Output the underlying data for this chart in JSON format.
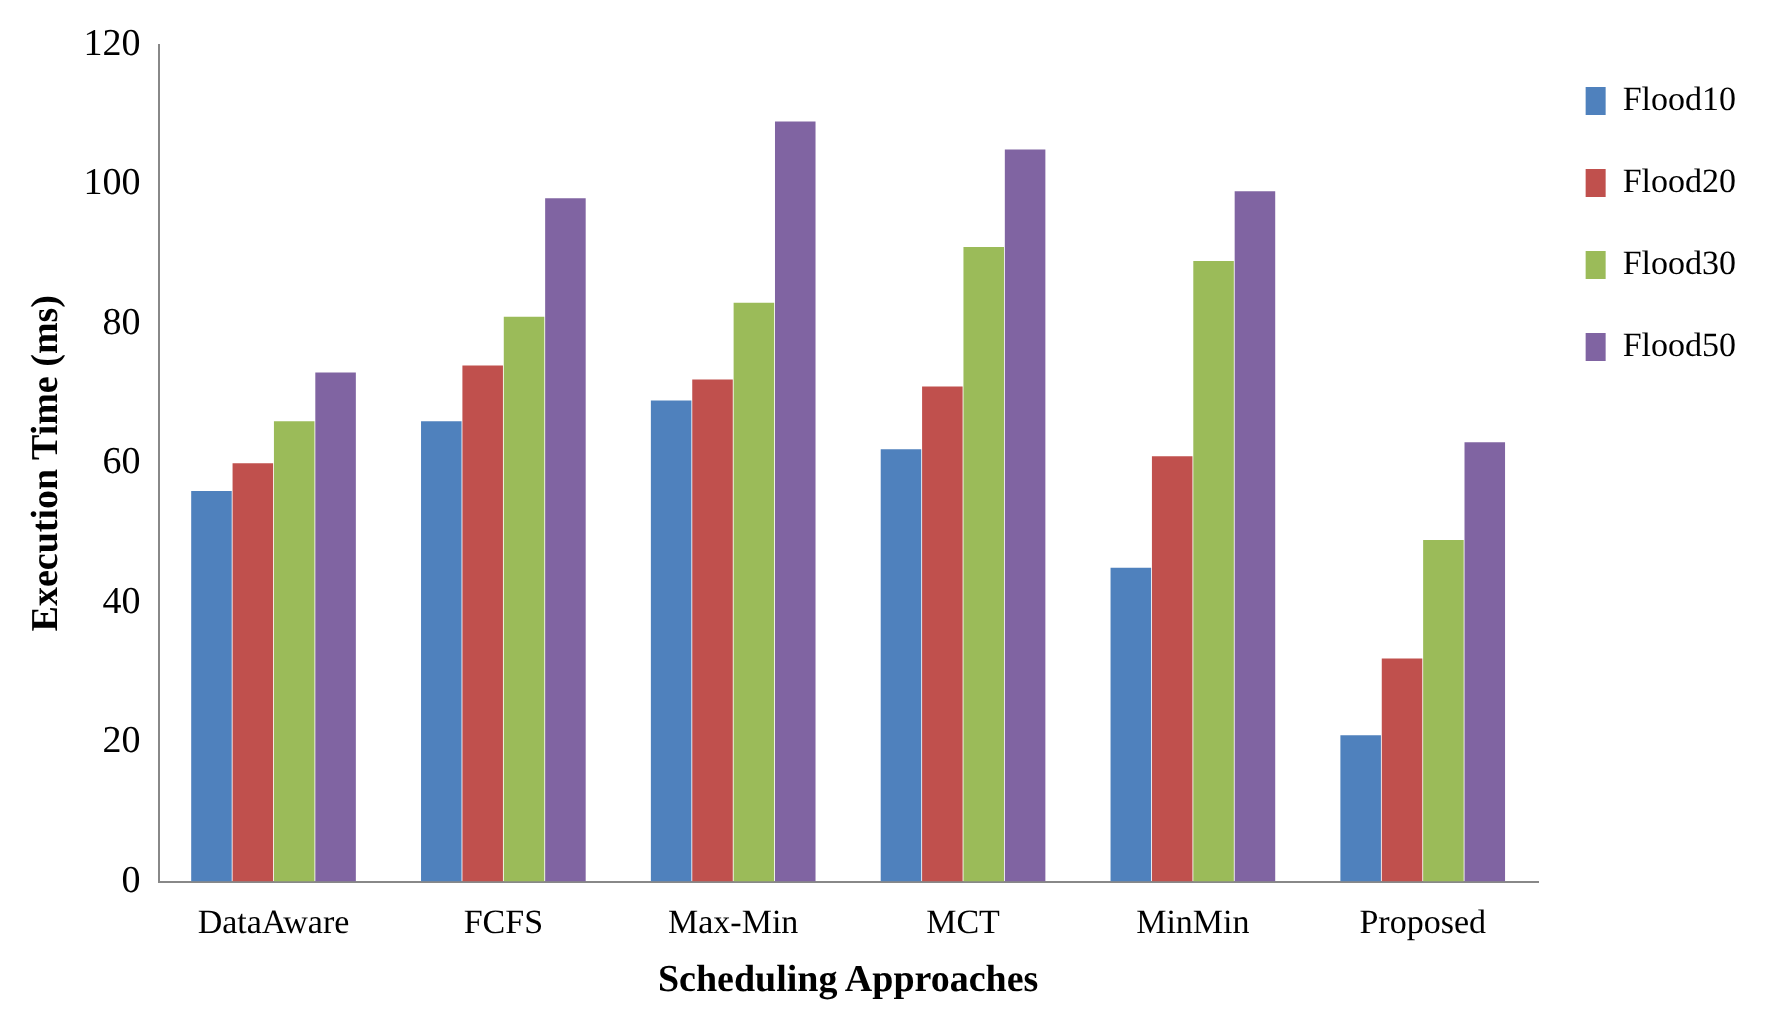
{
  "chart_data": {
    "type": "bar",
    "xlabel": "Scheduling Approaches",
    "ylabel": "Execution Time (ms)",
    "categories": [
      "DataAware",
      "FCFS",
      "Max-Min",
      "MCT",
      "MinMin",
      "Proposed"
    ],
    "series": [
      {
        "name": "Flood10",
        "color": "#4f81bd",
        "values": [
          56,
          66,
          69,
          62,
          45,
          21
        ]
      },
      {
        "name": "Flood20",
        "color": "#c0504d",
        "values": [
          60,
          74,
          72,
          71,
          61,
          32
        ]
      },
      {
        "name": "Flood30",
        "color": "#9bbb59",
        "values": [
          66,
          81,
          83,
          91,
          89,
          49
        ]
      },
      {
        "name": "Flood50",
        "color": "#8064a2",
        "values": [
          73,
          98,
          109,
          105,
          99,
          63
        ]
      }
    ],
    "ylim": [
      0,
      120
    ],
    "yticks": [
      0,
      20,
      40,
      60,
      80,
      100,
      120
    ],
    "grid": false,
    "legend": "top right"
  }
}
